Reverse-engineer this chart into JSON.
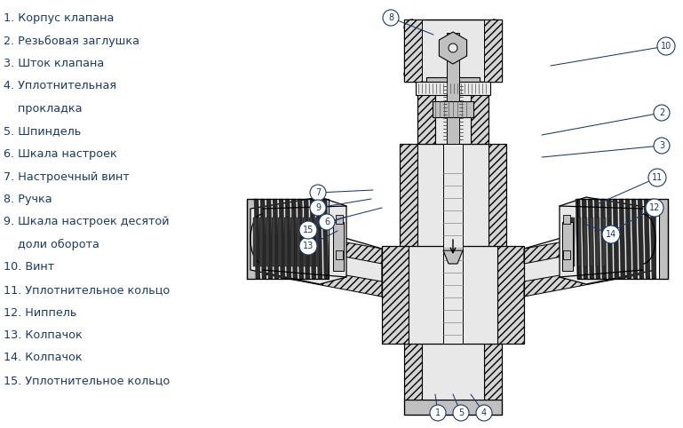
{
  "legend_lines": [
    "1. Корпус клапана",
    "2. Резьбовая заглушка",
    "3. Шток клапана",
    "4. Уплотнительная",
    "    прокладка",
    "5. Шпиндель",
    "6. Шкала настроек",
    "7. Настроечный винт",
    "8. Ручка",
    "9. Шкала настроек десятой",
    "    доли оборота",
    "10. Винт",
    "11. Уплотнительное кольцо",
    "12. Ниппель",
    "13. Колпачок",
    "14. Колпачок",
    "15. Уплотнительное кольцо"
  ],
  "text_color": "#1a3a6b",
  "bg_color": "#ffffff",
  "line_color": "#1a3a6b",
  "figsize": [
    7.69,
    4.82
  ],
  "dpi": 100,
  "callouts": [
    [
      1,
      493,
      17,
      490,
      38
    ],
    [
      2,
      745,
      355,
      610,
      330
    ],
    [
      3,
      745,
      318,
      610,
      305
    ],
    [
      4,
      545,
      17,
      530,
      38
    ],
    [
      5,
      519,
      17,
      510,
      38
    ],
    [
      6,
      368,
      232,
      430,
      248
    ],
    [
      7,
      358,
      265,
      420,
      268
    ],
    [
      8,
      440,
      462,
      488,
      443
    ],
    [
      9,
      358,
      248,
      418,
      258
    ],
    [
      10,
      750,
      430,
      620,
      408
    ],
    [
      11,
      740,
      282,
      672,
      252
    ],
    [
      12,
      737,
      248,
      683,
      218
    ],
    [
      13,
      347,
      205,
      380,
      222
    ],
    [
      14,
      688,
      218,
      658,
      230
    ],
    [
      15,
      347,
      223,
      390,
      238
    ]
  ]
}
